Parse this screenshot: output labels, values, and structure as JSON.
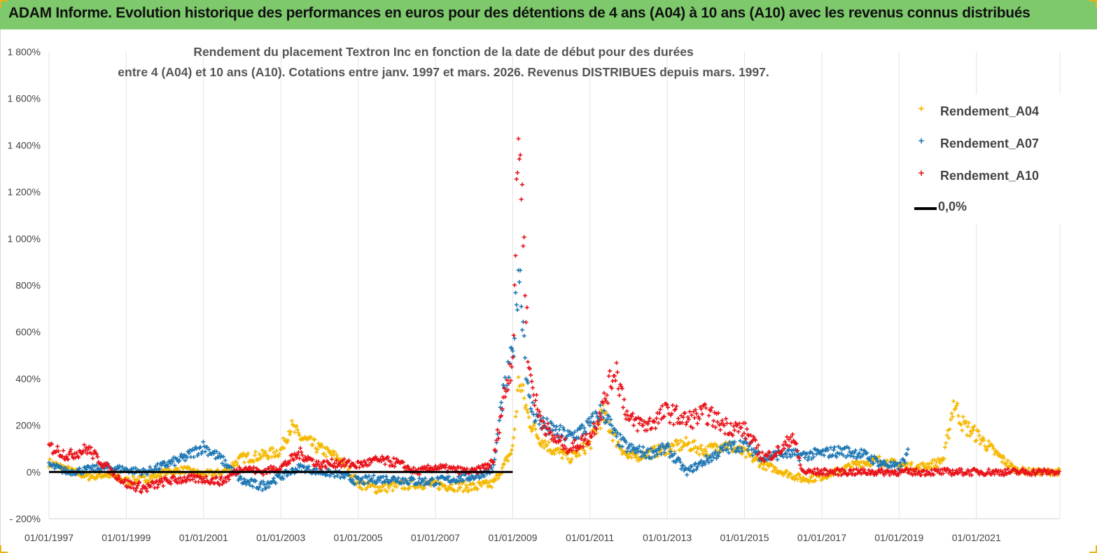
{
  "banner": {
    "title": "ADAM Informe. Evolution historique des performances en euros pour des détentions de 4 ans (A04) à 10 ans (A10) avec les revenus connus distribués"
  },
  "chart_data": {
    "type": "scatter",
    "title_line1": "Rendement du placement Textron Inc en fonction de la date de début pour des durées",
    "title_line2": "entre 4 (A04) et 10 ans (A10). Cotations entre janv. 1997 et mars. 2026. Revenus DISTRIBUES depuis mars. 1997.",
    "xlabel": "",
    "ylabel": "",
    "x_range": [
      "1997-01-01",
      "2023-03-01"
    ],
    "x_ticks": [
      "01/01/1997",
      "01/01/1999",
      "01/01/2001",
      "01/01/2003",
      "01/01/2005",
      "01/01/2007",
      "01/01/2009",
      "01/01/2011",
      "01/01/2013",
      "01/01/2015",
      "01/01/2017",
      "01/01/2019",
      "01/01/2021"
    ],
    "y_range": [
      -200,
      1800
    ],
    "y_ticks": [
      -200,
      0,
      200,
      400,
      600,
      800,
      1000,
      1200,
      1400,
      1600,
      1800
    ],
    "y_tick_labels": [
      "- 200%",
      "0%",
      "200%",
      "400%",
      "600%",
      "800%",
      "1 000%",
      "1 200%",
      "1 400%",
      "1 600%",
      "1 800%"
    ],
    "grid": "vertical",
    "legend_position": "top-right",
    "colors": {
      "A04": "#f5b800",
      "A07": "#1f78b4",
      "A10": "#e8141b",
      "zero": "#000000"
    },
    "series": [
      {
        "name": "Rendement_A04",
        "marker": "+",
        "x": [
          "1997-01-01",
          "1997-07-01",
          "1998-01-01",
          "1998-07-01",
          "1999-01-01",
          "1999-07-01",
          "2000-01-01",
          "2000-07-01",
          "2001-01-01",
          "2001-07-01",
          "2002-01-01",
          "2002-07-01",
          "2003-01-01",
          "2003-04-01",
          "2003-07-01",
          "2004-01-01",
          "2004-07-01",
          "2005-01-01",
          "2005-07-01",
          "2006-01-01",
          "2006-07-01",
          "2007-01-01",
          "2007-07-01",
          "2008-01-01",
          "2008-07-01",
          "2008-10-01",
          "2009-01-01",
          "2009-03-01",
          "2009-06-01",
          "2009-09-01",
          "2010-01-01",
          "2010-07-01",
          "2011-01-01",
          "2011-05-01",
          "2011-09-01",
          "2012-01-01",
          "2012-07-01",
          "2013-01-01",
          "2013-07-01",
          "2014-01-01",
          "2014-07-01",
          "2015-01-01",
          "2015-07-01",
          "2016-01-01",
          "2016-07-01",
          "2017-01-01",
          "2017-07-01",
          "2018-01-01",
          "2018-07-01",
          "2019-01-01",
          "2019-07-01",
          "2020-01-01",
          "2020-03-01",
          "2020-06-01",
          "2020-09-01",
          "2021-01-01",
          "2021-07-01",
          "2022-01-01",
          "2022-07-01",
          "2023-03-01"
        ],
        "values": [
          40,
          10,
          -20,
          -10,
          -40,
          -30,
          0,
          10,
          -10,
          0,
          60,
          70,
          90,
          195,
          150,
          100,
          60,
          -50,
          -70,
          -60,
          -50,
          -55,
          -60,
          -65,
          -50,
          20,
          100,
          400,
          230,
          150,
          100,
          60,
          120,
          250,
          140,
          60,
          80,
          100,
          120,
          90,
          120,
          80,
          30,
          0,
          -30,
          -20,
          10,
          40,
          50,
          30,
          20,
          40,
          60,
          300,
          200,
          160,
          80,
          10,
          0,
          0
        ]
      },
      {
        "name": "Rendement_A07",
        "marker": "+",
        "x": [
          "1997-01-01",
          "1997-07-01",
          "1998-01-01",
          "1998-07-01",
          "1999-01-01",
          "1999-07-01",
          "2000-01-01",
          "2000-07-01",
          "2001-01-01",
          "2001-07-01",
          "2002-01-01",
          "2002-07-01",
          "2003-01-01",
          "2003-07-01",
          "2004-01-01",
          "2004-07-01",
          "2005-01-01",
          "2005-07-01",
          "2006-01-01",
          "2006-07-01",
          "2007-01-01",
          "2007-07-01",
          "2008-01-01",
          "2008-07-01",
          "2008-10-01",
          "2009-01-01",
          "2009-03-01",
          "2009-06-01",
          "2009-09-01",
          "2010-01-01",
          "2010-07-01",
          "2011-01-01",
          "2011-05-01",
          "2011-09-01",
          "2012-01-01",
          "2012-07-01",
          "2013-01-01",
          "2013-07-01",
          "2014-01-01",
          "2014-07-01",
          "2015-01-01",
          "2015-07-01",
          "2016-01-01",
          "2016-07-01",
          "2017-01-01",
          "2017-07-01",
          "2018-01-01",
          "2018-07-01",
          "2019-01-01",
          "2019-04-01"
        ],
        "values": [
          30,
          0,
          10,
          20,
          10,
          0,
          30,
          60,
          110,
          50,
          -40,
          -60,
          -20,
          20,
          0,
          -10,
          -40,
          -30,
          -30,
          -40,
          -40,
          -30,
          -20,
          10,
          320,
          500,
          900,
          300,
          220,
          180,
          150,
          200,
          270,
          150,
          100,
          80,
          100,
          0,
          50,
          100,
          120,
          60,
          80,
          70,
          80,
          90,
          80,
          40,
          20,
          80
        ]
      },
      {
        "name": "Rendement_A10",
        "marker": "+",
        "x": [
          "1997-01-01",
          "1997-07-01",
          "1998-01-01",
          "1998-07-01",
          "1999-01-01",
          "1999-07-01",
          "2000-01-01",
          "2000-07-01",
          "2001-01-01",
          "2001-07-01",
          "2002-01-01",
          "2002-07-01",
          "2003-01-01",
          "2003-07-01",
          "2004-01-01",
          "2004-07-01",
          "2005-01-01",
          "2005-07-01",
          "2006-01-01",
          "2006-07-01",
          "2007-01-01",
          "2007-07-01",
          "2008-01-01",
          "2008-07-01",
          "2008-10-01",
          "2009-01-01",
          "2009-03-01",
          "2009-06-01",
          "2009-09-01",
          "2010-01-01",
          "2010-07-01",
          "2011-01-01",
          "2011-05-01",
          "2011-09-01",
          "2012-01-01",
          "2012-07-01",
          "2013-01-01",
          "2013-07-01",
          "2014-01-01",
          "2014-07-01",
          "2015-01-01",
          "2015-07-01",
          "2016-01-01",
          "2016-04-01",
          "2016-07-01",
          "2017-01-01",
          "2018-01-01",
          "2019-01-01",
          "2020-01-01",
          "2021-01-01",
          "2022-01-01",
          "2023-03-01"
        ],
        "values": [
          110,
          70,
          100,
          20,
          -50,
          -70,
          -40,
          -30,
          -30,
          -40,
          20,
          0,
          20,
          80,
          30,
          40,
          30,
          50,
          40,
          0,
          20,
          10,
          0,
          40,
          300,
          500,
          1500,
          450,
          250,
          150,
          100,
          150,
          280,
          450,
          220,
          200,
          260,
          220,
          250,
          200,
          180,
          60,
          100,
          160,
          0,
          0,
          0,
          0,
          0,
          0,
          0,
          0
        ]
      },
      {
        "name": "0,0%",
        "type": "line",
        "x": [
          "1997-01-01",
          "2009-01-01"
        ],
        "values": [
          0,
          0
        ]
      }
    ]
  }
}
